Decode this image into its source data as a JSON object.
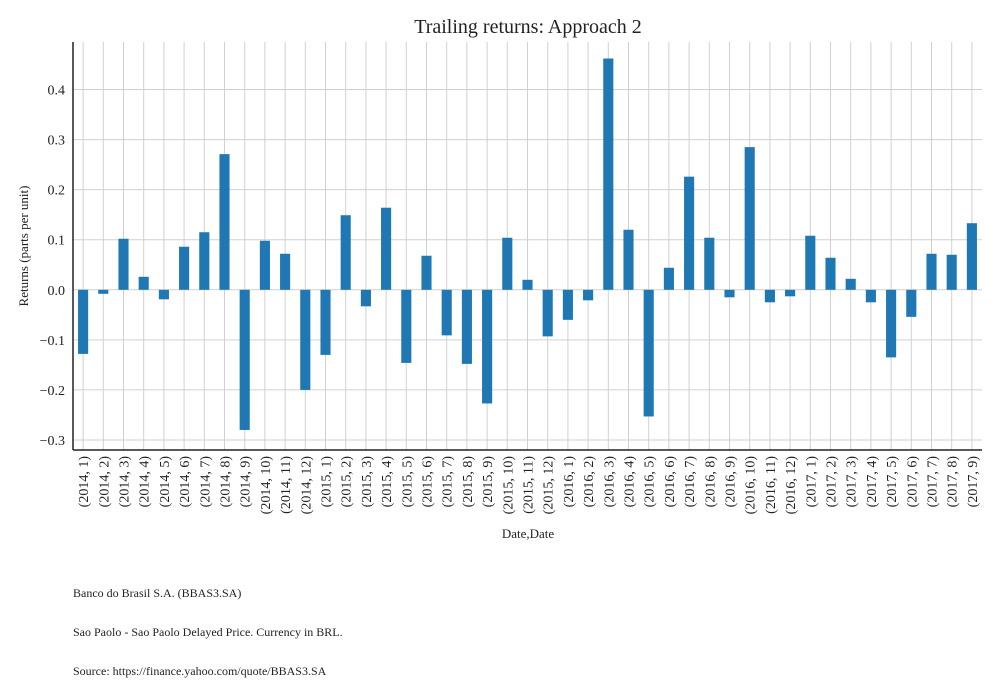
{
  "chart_data": {
    "type": "bar",
    "title": "Trailing returns: Approach 2",
    "xlabel": "Date,Date",
    "ylabel": "Returns (parts per unit)",
    "ylim": [
      -0.32,
      0.495
    ],
    "yticks": [
      {
        "value": 0.4,
        "label": "0.4"
      },
      {
        "value": 0.3,
        "label": "0.3"
      },
      {
        "value": 0.2,
        "label": "0.2"
      },
      {
        "value": 0.1,
        "label": "0.1"
      },
      {
        "value": 0.0,
        "label": "0.0"
      },
      {
        "value": -0.1,
        "label": "−0.1"
      },
      {
        "value": -0.2,
        "label": "−0.2"
      },
      {
        "value": -0.3,
        "label": "−0.3"
      }
    ],
    "grid": true,
    "bar_color": "#1f77b4",
    "categories": [
      "(2014, 1)",
      "(2014, 2)",
      "(2014, 3)",
      "(2014, 4)",
      "(2014, 5)",
      "(2014, 6)",
      "(2014, 7)",
      "(2014, 8)",
      "(2014, 9)",
      "(2014, 10)",
      "(2014, 11)",
      "(2014, 12)",
      "(2015, 1)",
      "(2015, 2)",
      "(2015, 3)",
      "(2015, 4)",
      "(2015, 5)",
      "(2015, 6)",
      "(2015, 7)",
      "(2015, 8)",
      "(2015, 9)",
      "(2015, 10)",
      "(2015, 11)",
      "(2015, 12)",
      "(2016, 1)",
      "(2016, 2)",
      "(2016, 3)",
      "(2016, 4)",
      "(2016, 5)",
      "(2016, 6)",
      "(2016, 7)",
      "(2016, 8)",
      "(2016, 9)",
      "(2016, 10)",
      "(2016, 11)",
      "(2016, 12)",
      "(2017, 1)",
      "(2017, 2)",
      "(2017, 3)",
      "(2017, 4)",
      "(2017, 5)",
      "(2017, 6)",
      "(2017, 7)",
      "(2017, 8)",
      "(2017, 9)"
    ],
    "values": [
      -0.128,
      -0.008,
      0.102,
      0.026,
      -0.019,
      0.086,
      0.115,
      0.271,
      -0.28,
      0.098,
      0.072,
      -0.2,
      -0.13,
      0.149,
      -0.033,
      0.164,
      -0.146,
      0.068,
      -0.091,
      -0.148,
      -0.227,
      0.104,
      0.02,
      -0.093,
      -0.06,
      -0.021,
      0.462,
      0.12,
      -0.253,
      0.044,
      0.226,
      0.104,
      -0.015,
      0.285,
      -0.025,
      -0.013,
      0.108,
      0.064,
      0.022,
      -0.025,
      -0.135,
      -0.054,
      0.072,
      0.07,
      0.133
    ]
  },
  "footer": {
    "line1": "Banco do Brasil S.A. (BBAS3.SA)",
    "line2": "Sao Paolo - Sao Paolo Delayed Price. Currency in BRL.",
    "line3": "Source: https://finance.yahoo.com/quote/BBAS3.SA"
  }
}
